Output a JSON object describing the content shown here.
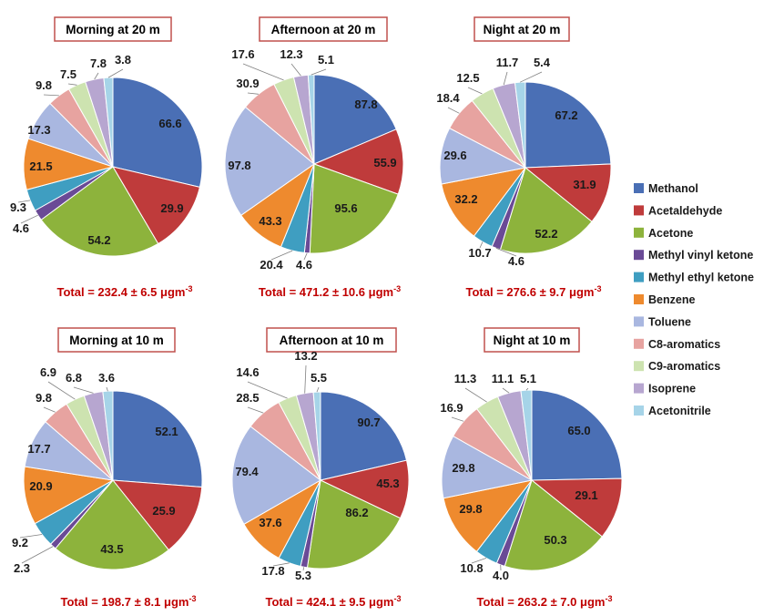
{
  "chart_data": [
    {
      "type": "pie",
      "title": "Morning at 20 m",
      "total": "Total = 232.4 ± 6.5 μgm",
      "total_exp": "-3",
      "categories": [
        "Methanol",
        "Acetaldehyde",
        "Acetone",
        "Methyl vinyl ketone",
        "Methyl ethyl ketone",
        "Benzene",
        "Toluene",
        "C8-aromatics",
        "C9-aromatics",
        "Isoprene",
        "Acetonitrile"
      ],
      "values": [
        66.6,
        29.9,
        54.2,
        4.6,
        9.3,
        21.5,
        17.3,
        9.8,
        7.5,
        7.8,
        3.8
      ],
      "labels": [
        "66.6",
        "29.9",
        "54.2",
        "4.6",
        "9.3",
        "21.5",
        "17.3",
        "9.8",
        "7.5",
        "7.8",
        "3.8"
      ]
    },
    {
      "type": "pie",
      "title": "Afternoon at 20 m",
      "total": "Total = 471.2 ± 10.6 μgm",
      "total_exp": "-3",
      "categories": [
        "Methanol",
        "Acetaldehyde",
        "Acetone",
        "Methyl vinyl ketone",
        "Methyl ethyl ketone",
        "Benzene",
        "Toluene",
        "C8-aromatics",
        "C9-aromatics",
        "Isoprene",
        "Acetonitrile"
      ],
      "values": [
        87.8,
        55.9,
        95.6,
        4.6,
        20.4,
        43.3,
        97.8,
        30.9,
        17.6,
        12.3,
        5.1
      ],
      "labels": [
        "87.8",
        "55.9",
        "95.6",
        "4.6",
        "20.4",
        "43.3",
        "97.8",
        "30.9",
        "17.6",
        "12.3",
        "5.1"
      ]
    },
    {
      "type": "pie",
      "title": "Night at 20 m",
      "total": "Total = 276.6 ± 9.7 μgm",
      "total_exp": "-3",
      "categories": [
        "Methanol",
        "Acetaldehyde",
        "Acetone",
        "Methyl vinyl ketone",
        "Methyl ethyl ketone",
        "Benzene",
        "Toluene",
        "C8-aromatics",
        "C9-aromatics",
        "Isoprene",
        "Acetonitrile"
      ],
      "values": [
        67.2,
        31.9,
        52.2,
        4.6,
        10.7,
        32.2,
        29.6,
        18.4,
        12.5,
        11.7,
        5.4
      ],
      "labels": [
        "67.2",
        "31.9",
        "52.2",
        "4.6",
        "10.7",
        "32.2",
        "29.6",
        "18.4",
        "12.5",
        "11.7",
        "5.4"
      ]
    },
    {
      "type": "pie",
      "title": "Morning at 10 m",
      "total": "Total = 198.7 ± 8.1 μgm",
      "total_exp": "-3",
      "categories": [
        "Methanol",
        "Acetaldehyde",
        "Acetone",
        "Methyl vinyl ketone",
        "Methyl ethyl ketone",
        "Benzene",
        "Toluene",
        "C8-aromatics",
        "C9-aromatics",
        "Isoprene",
        "Acetonitrile"
      ],
      "values": [
        52.1,
        25.9,
        43.5,
        2.3,
        9.2,
        20.9,
        17.7,
        9.8,
        6.9,
        6.8,
        3.6
      ],
      "labels": [
        "52.1",
        "25.9",
        "43.5",
        "2.3",
        "9.2",
        "20.9",
        "17.7",
        "9.8",
        "6.9",
        "6.8",
        "3.6"
      ]
    },
    {
      "type": "pie",
      "title": "Afternoon at 10 m",
      "total": "Total = 424.1 ± 9.5 μgm",
      "total_exp": "-3",
      "categories": [
        "Methanol",
        "Acetaldehyde",
        "Acetone",
        "Methyl vinyl ketone",
        "Methyl ethyl ketone",
        "Benzene",
        "Toluene",
        "C8-aromatics",
        "C9-aromatics",
        "Isoprene",
        "Acetonitrile"
      ],
      "values": [
        90.7,
        45.3,
        86.2,
        5.3,
        17.8,
        37.6,
        79.4,
        28.5,
        14.6,
        13.2,
        5.5
      ],
      "labels": [
        "90.7",
        "45.3",
        "86.2",
        "5.3",
        "17.8",
        "37.6",
        "79.4",
        "28.5",
        "14.6",
        "13.2",
        "5.5"
      ]
    },
    {
      "type": "pie",
      "title": "Night at 10 m",
      "total": "Total = 263.2 ± 7.0 μgm",
      "total_exp": "-3",
      "categories": [
        "Methanol",
        "Acetaldehyde",
        "Acetone",
        "Methyl vinyl ketone",
        "Methyl ethyl ketone",
        "Benzene",
        "Toluene",
        "C8-aromatics",
        "C9-aromatics",
        "Isoprene",
        "Acetonitrile"
      ],
      "values": [
        65.0,
        29.1,
        50.3,
        4.0,
        10.8,
        29.8,
        29.8,
        16.9,
        11.3,
        11.1,
        5.1
      ],
      "labels": [
        "65.0",
        "29.1",
        "50.3",
        "4.0",
        "10.8",
        "29.8",
        "29.8",
        "16.9",
        "11.3",
        "11.1",
        "5.1"
      ]
    }
  ],
  "legend": {
    "placement": "right",
    "items": [
      {
        "label": "Methanol",
        "color": "#4a6fb5"
      },
      {
        "label": "Acetaldehyde",
        "color": "#bf3b3b"
      },
      {
        "label": "Acetone",
        "color": "#8db33c"
      },
      {
        "label": "Methyl vinyl ketone",
        "color": "#6a4a96"
      },
      {
        "label": "Methyl ethyl ketone",
        "color": "#3f9ec1"
      },
      {
        "label": "Benzene",
        "color": "#ee8a2e"
      },
      {
        "label": "Toluene",
        "color": "#a9b7e0"
      },
      {
        "label": "C8-aromatics",
        "color": "#e7a3a0"
      },
      {
        "label": "C9-aromatics",
        "color": "#cde3b0"
      },
      {
        "label": "Isoprene",
        "color": "#b7a6d0"
      },
      {
        "label": "Acetonitrile",
        "color": "#a6d4e8"
      }
    ]
  },
  "colors": {
    "title_border": "#c0504d",
    "total_text": "#c00000",
    "slice_edge": "#ffffff"
  }
}
